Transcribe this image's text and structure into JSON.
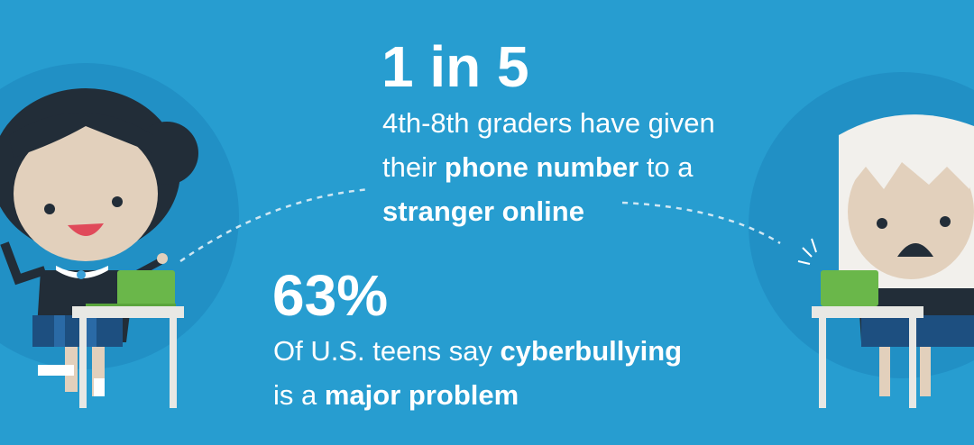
{
  "colors": {
    "background": "#279dd0",
    "circle": "#2190c5",
    "hair_dark": "#222d38",
    "skin": "#e2d0bc",
    "laptop": "#6ab74a",
    "desk": "#e8e8e4",
    "skirt": "#1d4f80",
    "mouth": "#e04a5a",
    "hair_blonde": "#f2f0ec"
  },
  "stat1": {
    "number": "1 in 5",
    "line1": "4th-8th graders have given",
    "line2_pre": "their ",
    "line2_bold": "phone number",
    "line2_post": " to a",
    "line3_bold": "stranger online"
  },
  "stat2": {
    "number": "63%",
    "line1_pre": "Of U.S. teens say ",
    "line1_bold": "cyberbullying",
    "line2_pre": "is a ",
    "line2_bold": "major problem"
  }
}
